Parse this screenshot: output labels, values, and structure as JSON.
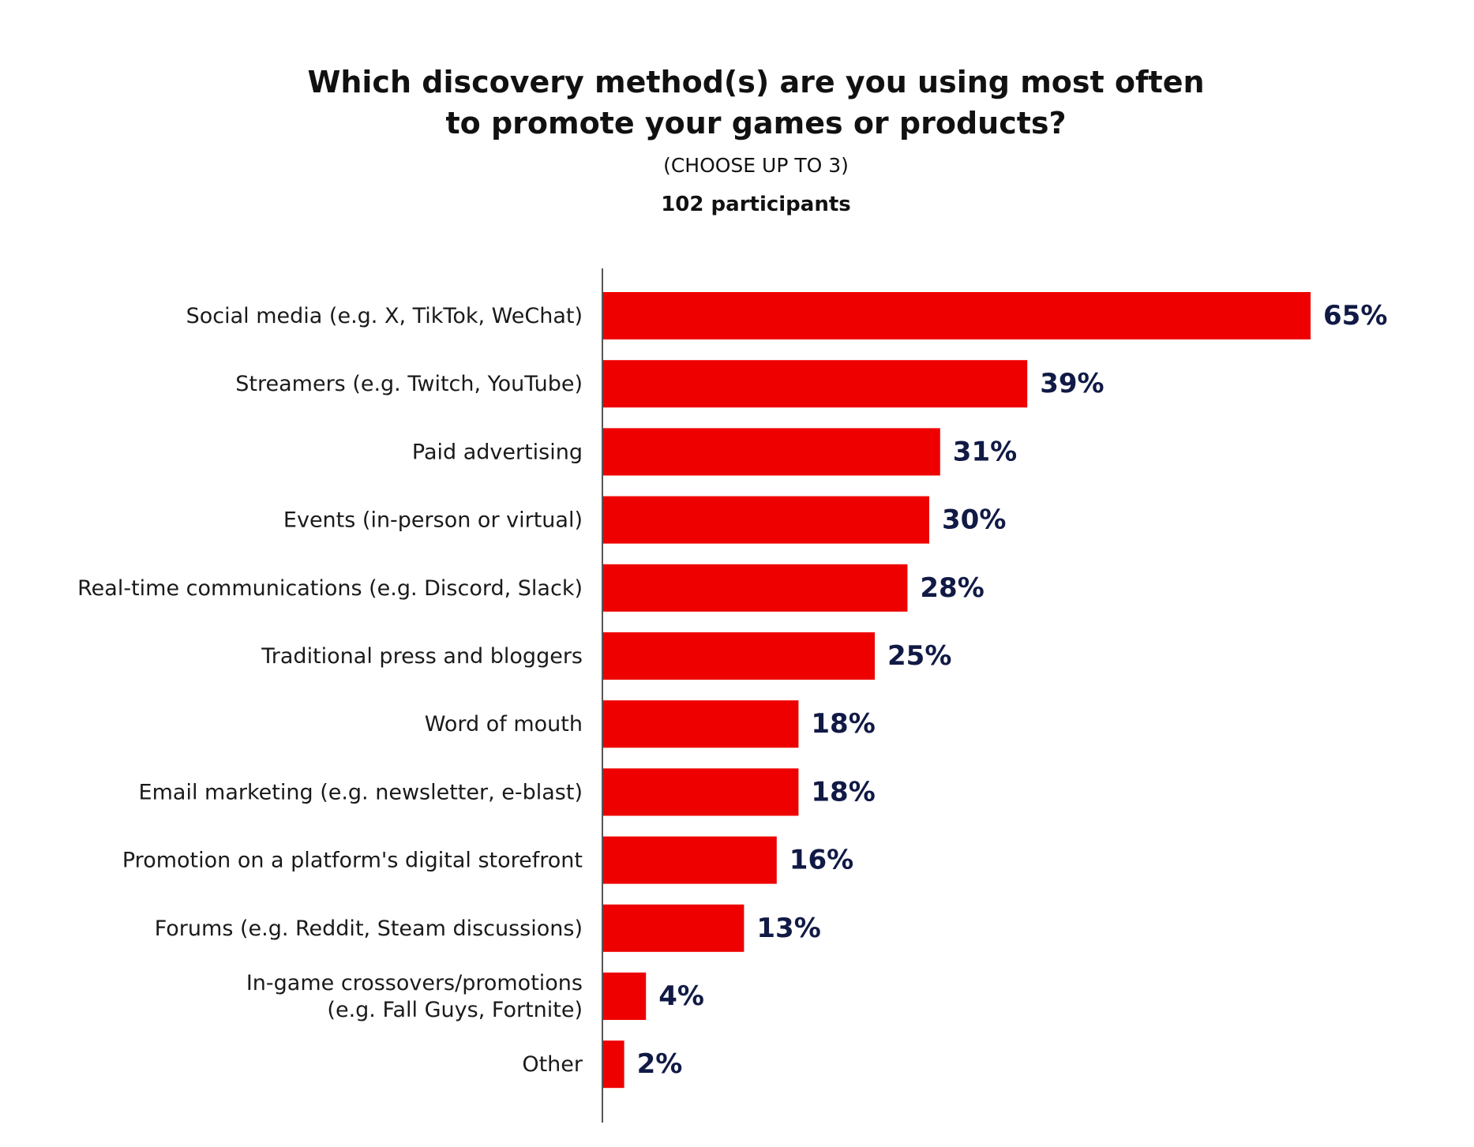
{
  "chart_data": {
    "type": "bar",
    "orientation": "horizontal",
    "title_lines": [
      "Which discovery method(s) are you using most often",
      "to promote your games or products?"
    ],
    "subtitle": "(CHOOSE UP TO 3)",
    "participants": "102 participants",
    "categories": [
      [
        "Social media (e.g. X, TikTok, WeChat)"
      ],
      [
        "Streamers (e.g. Twitch, YouTube)"
      ],
      [
        "Paid advertising"
      ],
      [
        "Events (in-person or virtual)"
      ],
      [
        "Real-time communications (e.g. Discord, Slack)"
      ],
      [
        "Traditional press and bloggers"
      ],
      [
        "Word of mouth"
      ],
      [
        "Email marketing (e.g. newsletter, e-blast)"
      ],
      [
        "Promotion on a platform's digital storefront"
      ],
      [
        "Forums (e.g. Reddit, Steam discussions)"
      ],
      [
        "In-game crossovers/promotions",
        "(e.g. Fall Guys, Fortnite)"
      ],
      [
        "Other"
      ]
    ],
    "values": [
      65,
      39,
      31,
      30,
      28,
      25,
      18,
      18,
      16,
      13,
      4,
      2
    ],
    "value_labels": [
      "65%",
      "39%",
      "31%",
      "30%",
      "28%",
      "25%",
      "18%",
      "18%",
      "16%",
      "13%",
      "4%",
      "2%"
    ],
    "xlim": [
      0,
      100
    ],
    "grid": false,
    "bar_color": "#ee0000",
    "value_label_color": "#111a45",
    "axis_color": "#555555"
  }
}
